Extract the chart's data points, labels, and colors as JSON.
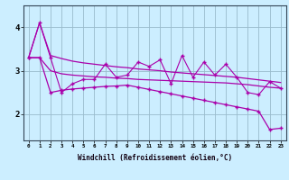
{
  "x": [
    0,
    1,
    2,
    3,
    4,
    5,
    6,
    7,
    8,
    9,
    10,
    11,
    12,
    13,
    14,
    15,
    16,
    17,
    18,
    19,
    20,
    21,
    22,
    23
  ],
  "line_zigzag": [
    3.3,
    4.1,
    3.3,
    2.5,
    2.7,
    2.8,
    2.8,
    3.15,
    2.85,
    2.9,
    3.2,
    3.1,
    3.25,
    2.7,
    3.35,
    2.85,
    3.2,
    2.9,
    3.15,
    2.85,
    2.5,
    2.45,
    2.75,
    2.6
  ],
  "line_upper_smooth": [
    3.3,
    4.1,
    3.35,
    3.28,
    3.22,
    3.18,
    3.15,
    3.12,
    3.09,
    3.07,
    3.04,
    3.02,
    3.0,
    2.97,
    2.95,
    2.93,
    2.91,
    2.89,
    2.87,
    2.85,
    2.82,
    2.79,
    2.76,
    2.73
  ],
  "line_mid_smooth": [
    3.3,
    3.3,
    3.0,
    2.93,
    2.9,
    2.88,
    2.86,
    2.85,
    2.83,
    2.82,
    2.8,
    2.79,
    2.78,
    2.77,
    2.76,
    2.75,
    2.74,
    2.73,
    2.72,
    2.7,
    2.68,
    2.65,
    2.62,
    2.6
  ],
  "line_lower_smooth": [
    3.3,
    3.3,
    2.5,
    2.55,
    2.58,
    2.6,
    2.62,
    2.64,
    2.65,
    2.67,
    2.62,
    2.57,
    2.52,
    2.47,
    2.42,
    2.37,
    2.32,
    2.27,
    2.22,
    2.17,
    2.12,
    2.07,
    1.65,
    1.68
  ],
  "color": "#aa00aa",
  "bg_color": "#cceeff",
  "grid_color": "#99bbcc",
  "ylabel_values": [
    2,
    3,
    4
  ],
  "ylim": [
    1.4,
    4.5
  ],
  "xlim": [
    -0.5,
    23.5
  ],
  "xlabel": "Windchill (Refroidissement éolien,°C)"
}
